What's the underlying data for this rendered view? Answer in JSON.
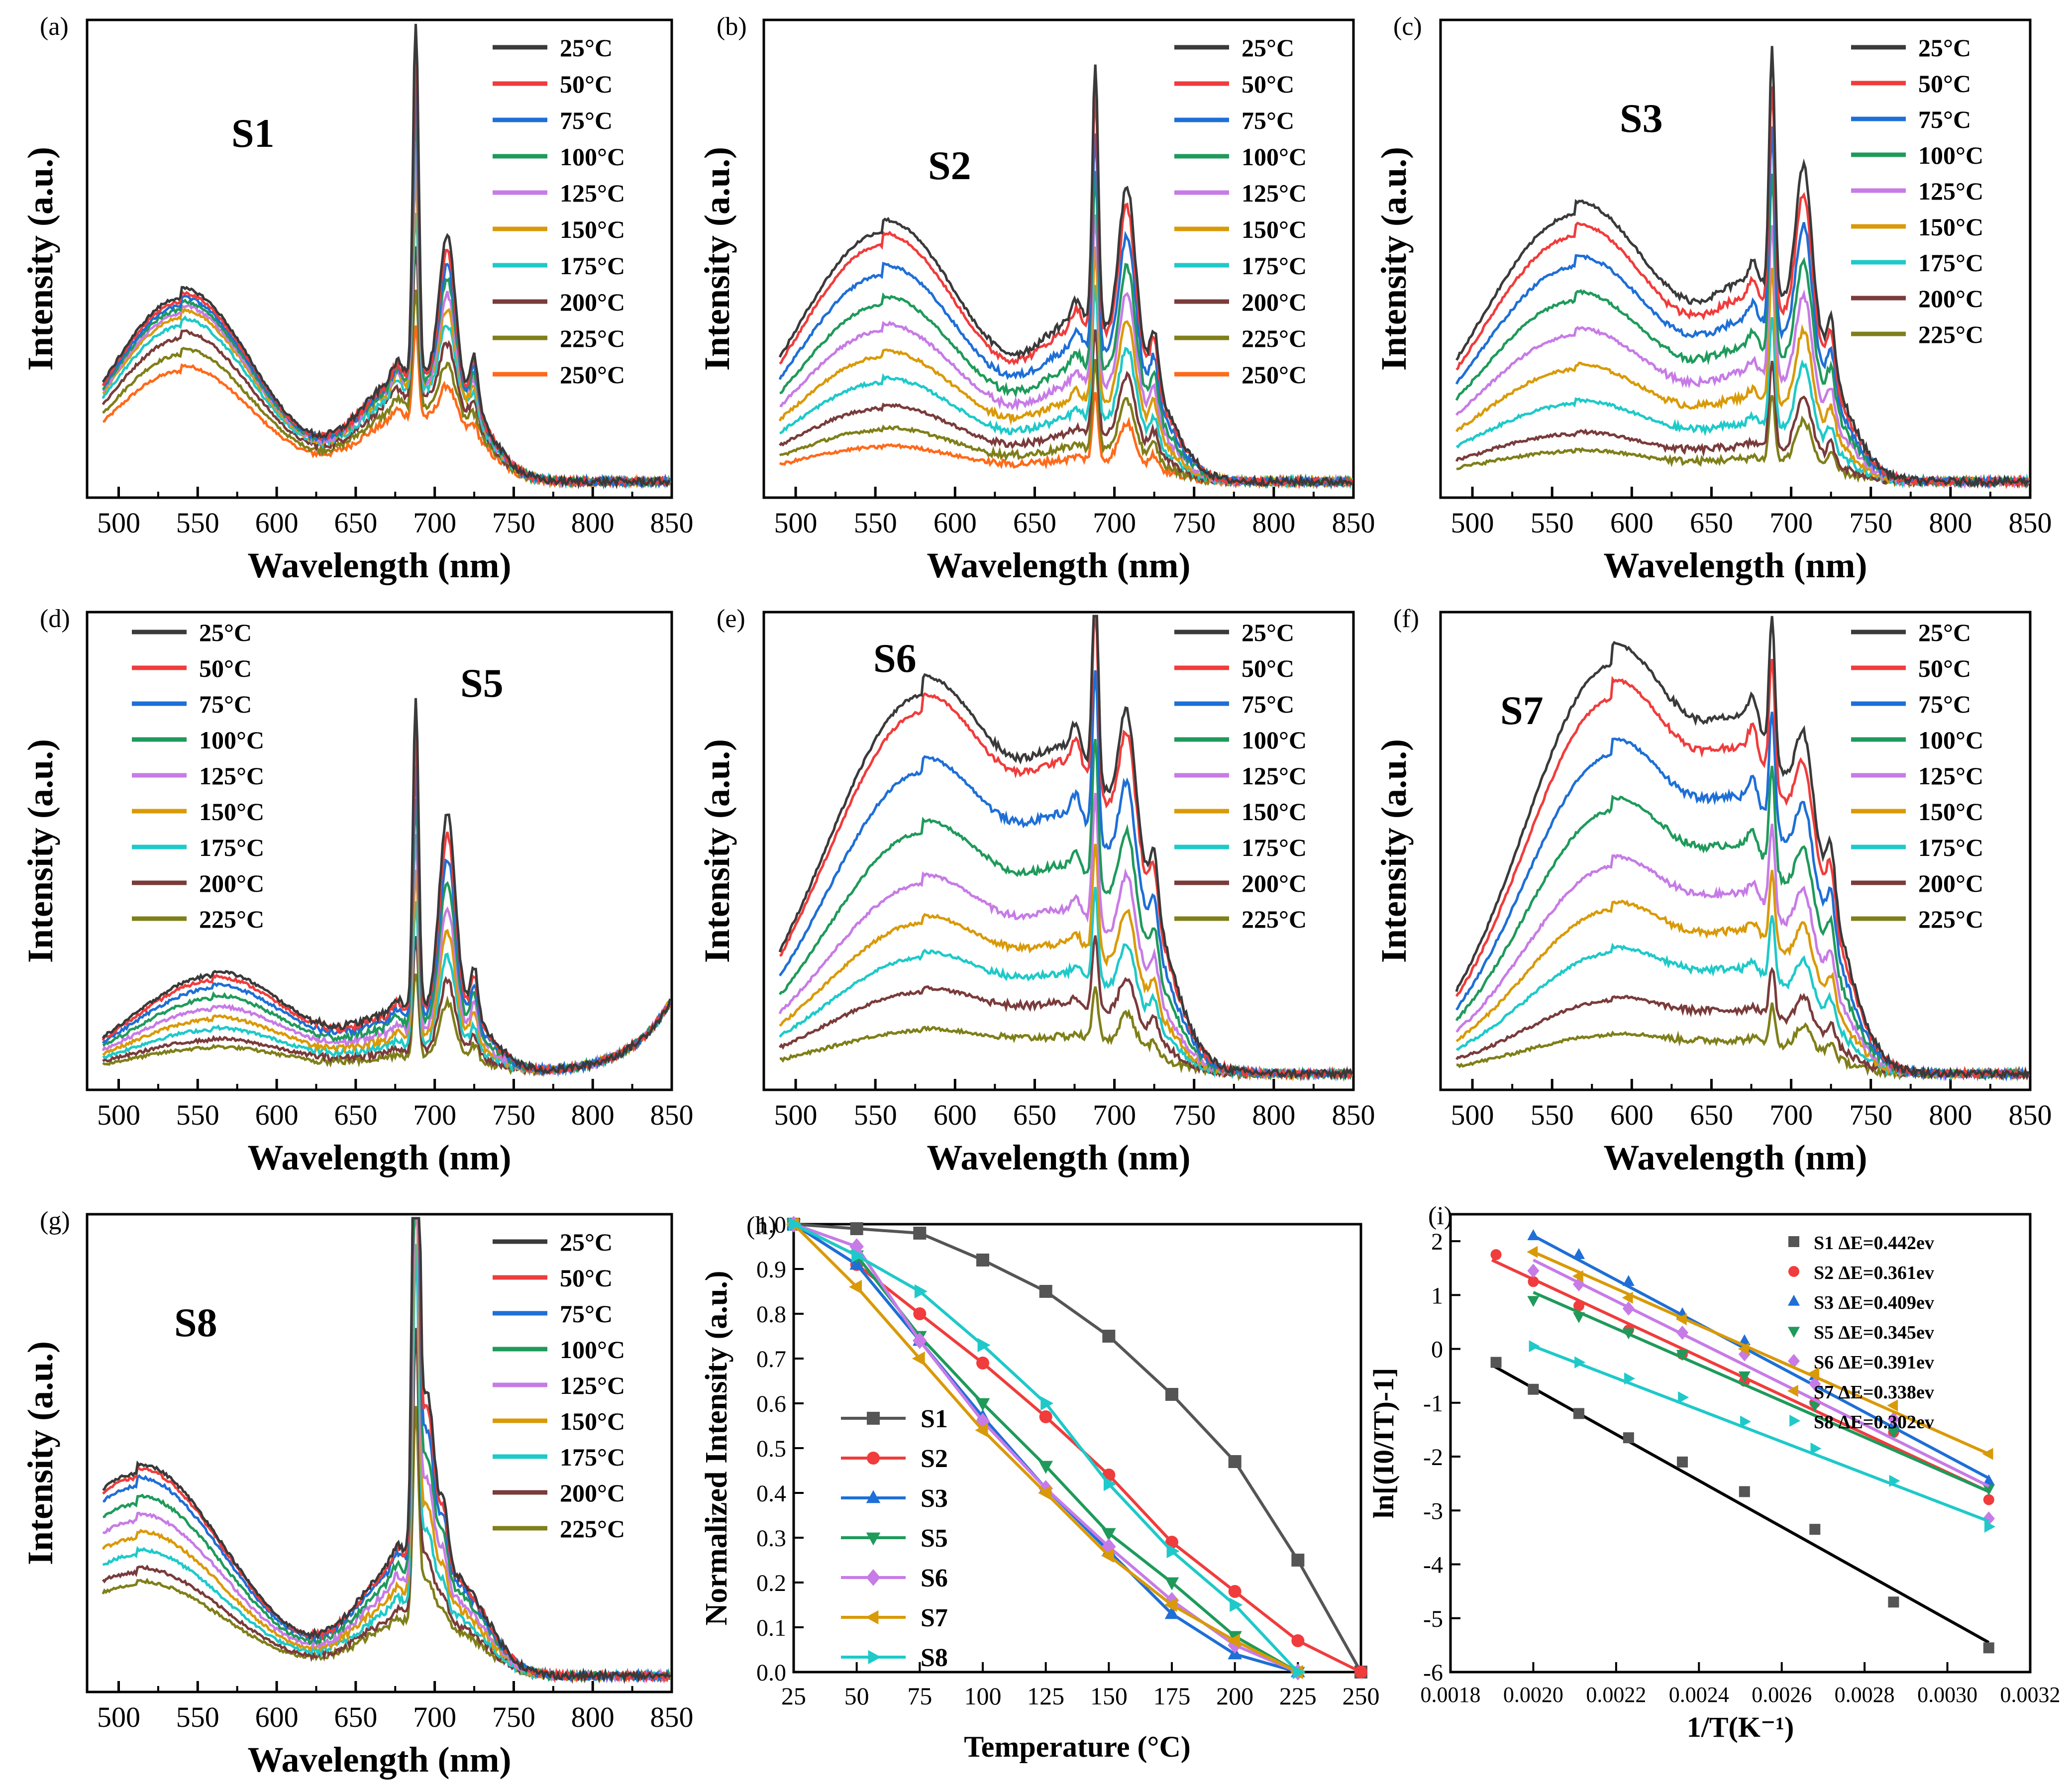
{
  "temperature_legend": [
    "25°C",
    "50°C",
    "75°C",
    "100°C",
    "125°C",
    "150°C",
    "175°C",
    "200°C",
    "225°C",
    "250°C"
  ],
  "series_colors": [
    "#3a3a3a",
    "#f03c3c",
    "#1e6fd6",
    "#1f9a5b",
    "#c77be6",
    "#d99a08",
    "#1fc9c9",
    "#7a3b3b",
    "#7f7f1a",
    "#ff6a1a"
  ],
  "chart_data": [
    {
      "panel": "(a)",
      "sample": "S1",
      "type": "line",
      "xlabel": "Wavelength (nm)",
      "ylabel": "Intensity (a.u.)",
      "xlim": [
        480,
        850
      ],
      "xticks": [
        500,
        550,
        600,
        650,
        700,
        750,
        800,
        850
      ],
      "legend": [
        "25°C",
        "50°C",
        "75°C",
        "100°C",
        "125°C",
        "150°C",
        "175°C",
        "200°C",
        "225°C",
        "250°C"
      ],
      "profile": {
        "hump_center": 540,
        "hump_width": 45,
        "valley": 640,
        "peaks": [
          688,
          708,
          725
        ],
        "hump_factor": 0.95,
        "peak688": 2.2,
        "peak708": 1.2,
        "base": [
          0.45,
          0.44,
          0.43,
          0.42,
          0.41,
          0.4,
          0.38,
          0.35,
          0.31,
          0.27
        ],
        "rise": 0
      }
    },
    {
      "panel": "(b)",
      "sample": "S2",
      "type": "line",
      "xlabel": "Wavelength (nm)",
      "ylabel": "Intensity (a.u.)",
      "xlim": [
        480,
        850
      ],
      "xticks": [
        500,
        550,
        600,
        650,
        700,
        750,
        800,
        850
      ],
      "legend": [
        "25°C",
        "50°C",
        "75°C",
        "100°C",
        "125°C",
        "150°C",
        "175°C",
        "200°C",
        "225°C",
        "250°C"
      ],
      "profile": {
        "hump_center": 555,
        "hump_width": 55,
        "valley": 645,
        "peaks": [
          688,
          708,
          725
        ],
        "hump_factor": 1.0,
        "peak688": 1.6,
        "peak708": 1.3,
        "base": [
          0.58,
          0.55,
          0.48,
          0.41,
          0.35,
          0.29,
          0.23,
          0.17,
          0.12,
          0.08
        ],
        "rise": 0
      }
    },
    {
      "panel": "(c)",
      "sample": "S3",
      "type": "line",
      "xlabel": "Wavelength (nm)",
      "ylabel": "Intensity (a.u.)",
      "xlim": [
        480,
        850
      ],
      "xticks": [
        500,
        550,
        600,
        650,
        700,
        750,
        800,
        850
      ],
      "legend": [
        "25°C",
        "50°C",
        "75°C",
        "100°C",
        "125°C",
        "150°C",
        "175°C",
        "200°C",
        "225°C"
      ],
      "profile": {
        "hump_center": 565,
        "hump_width": 60,
        "valley": 640,
        "peaks": [
          688,
          708,
          725
        ],
        "hump_factor": 1.0,
        "peak688": 1.5,
        "peak708": 1.3,
        "base": [
          0.62,
          0.57,
          0.5,
          0.42,
          0.34,
          0.26,
          0.18,
          0.11,
          0.07
        ],
        "rise": 0
      }
    },
    {
      "panel": "(d)",
      "sample": "S5",
      "type": "line",
      "xlabel": "Wavelength (nm)",
      "ylabel": "Intensity (a.u.)",
      "xlim": [
        480,
        850
      ],
      "xticks": [
        500,
        550,
        600,
        650,
        700,
        750,
        800,
        850
      ],
      "legend": [
        "25°C",
        "50°C",
        "75°C",
        "100°C",
        "125°C",
        "150°C",
        "175°C",
        "200°C",
        "225°C"
      ],
      "profile": {
        "hump_center": 560,
        "hump_width": 50,
        "valley": 630,
        "peaks": [
          688,
          708,
          725
        ],
        "hump_factor": 0.6,
        "peak688": 1.9,
        "peak708": 1.6,
        "base": [
          0.38,
          0.36,
          0.33,
          0.29,
          0.25,
          0.21,
          0.17,
          0.13,
          0.1
        ],
        "rise": 0.5
      }
    },
    {
      "panel": "(e)",
      "sample": "S6",
      "type": "line",
      "xlabel": "Wavelength (nm)",
      "ylabel": "Intensity (a.u.)",
      "xlim": [
        480,
        850
      ],
      "xticks": [
        500,
        550,
        600,
        650,
        700,
        750,
        800,
        850
      ],
      "legend": [
        "25°C",
        "50°C",
        "75°C",
        "100°C",
        "125°C",
        "150°C",
        "175°C",
        "200°C",
        "225°C"
      ],
      "profile": {
        "hump_center": 580,
        "hump_width": 60,
        "valley": 660,
        "peaks": [
          688,
          708,
          725
        ],
        "hump_factor": 1.0,
        "peak688": 1.25,
        "peak708": 1.0,
        "base": [
          0.88,
          0.84,
          0.7,
          0.56,
          0.44,
          0.35,
          0.27,
          0.19,
          0.1
        ],
        "rise": 0
      }
    },
    {
      "panel": "(f)",
      "sample": "S7",
      "type": "line",
      "xlabel": "Wavelength (nm)",
      "ylabel": "Intensity (a.u.)",
      "xlim": [
        480,
        850
      ],
      "xticks": [
        500,
        550,
        600,
        650,
        700,
        750,
        800,
        850
      ],
      "legend": [
        "25°C",
        "50°C",
        "75°C",
        "100°C",
        "125°C",
        "150°C",
        "175°C",
        "200°C",
        "225°C"
      ],
      "profile": {
        "hump_center": 588,
        "hump_width": 55,
        "valley": 670,
        "peaks": [
          688,
          708,
          725
        ],
        "hump_factor": 1.0,
        "peak688": 0.85,
        "peak708": 0.7,
        "base": [
          0.95,
          0.87,
          0.74,
          0.61,
          0.48,
          0.38,
          0.28,
          0.17,
          0.09
        ],
        "rise": 0
      }
    },
    {
      "panel": "(g)",
      "sample": "S8",
      "type": "line",
      "xlabel": "Wavelength (nm)",
      "ylabel": "Intensity (a.u.)",
      "xlim": [
        480,
        850
      ],
      "xticks": [
        500,
        550,
        600,
        650,
        700,
        750,
        800,
        850
      ],
      "legend": [
        "25°C",
        "50°C",
        "75°C",
        "100°C",
        "125°C",
        "150°C",
        "175°C",
        "200°C",
        "225°C"
      ],
      "profile": {
        "hump_center": 512,
        "hump_width": 55,
        "valley": 630,
        "peaks": [
          688,
          695,
          706
        ],
        "hump_factor": 1.0,
        "peak688": 4.5,
        "peak708": 1.4,
        "base": [
          0.47,
          0.46,
          0.44,
          0.4,
          0.36,
          0.32,
          0.28,
          0.24,
          0.21
        ],
        "rise": 0
      }
    },
    {
      "panel": "(h)",
      "type": "line",
      "xlabel": "Temperature (°C)",
      "ylabel": "Normalized Intensity (a.u.)",
      "xlim": [
        25,
        250
      ],
      "ylim": [
        0,
        1.0
      ],
      "xticks": [
        25,
        50,
        75,
        100,
        125,
        150,
        175,
        200,
        225,
        250
      ],
      "yticks": [
        0.0,
        0.1,
        0.2,
        0.3,
        0.4,
        0.5,
        0.6,
        0.7,
        0.8,
        0.9,
        1.0
      ],
      "series": [
        {
          "name": "S1",
          "marker": "square",
          "x": [
            25,
            50,
            75,
            100,
            125,
            150,
            175,
            200,
            225,
            250
          ],
          "values": [
            1.0,
            0.99,
            0.98,
            0.92,
            0.85,
            0.75,
            0.62,
            0.47,
            0.25,
            0.0
          ]
        },
        {
          "name": "S2",
          "marker": "circle",
          "x": [
            25,
            50,
            75,
            100,
            125,
            150,
            175,
            200,
            225,
            250
          ],
          "values": [
            1.0,
            0.91,
            0.8,
            0.69,
            0.57,
            0.44,
            0.29,
            0.18,
            0.07,
            0.0
          ]
        },
        {
          "name": "S3",
          "marker": "triangle-up",
          "x": [
            25,
            50,
            75,
            100,
            125,
            150,
            175,
            200,
            225
          ],
          "values": [
            1.0,
            0.91,
            0.74,
            0.57,
            0.41,
            0.27,
            0.13,
            0.04,
            0.0
          ]
        },
        {
          "name": "S5",
          "marker": "triangle-down",
          "x": [
            25,
            50,
            75,
            100,
            125,
            150,
            175,
            200,
            225
          ],
          "values": [
            1.0,
            0.93,
            0.75,
            0.6,
            0.46,
            0.31,
            0.2,
            0.08,
            0.0
          ]
        },
        {
          "name": "S6",
          "marker": "diamond",
          "x": [
            25,
            50,
            75,
            100,
            125,
            150,
            175,
            200,
            225
          ],
          "values": [
            1.0,
            0.95,
            0.74,
            0.56,
            0.41,
            0.28,
            0.16,
            0.06,
            0.0
          ]
        },
        {
          "name": "S7",
          "marker": "triangle-left",
          "x": [
            25,
            50,
            75,
            100,
            125,
            150,
            175,
            200,
            225
          ],
          "values": [
            1.0,
            0.86,
            0.7,
            0.54,
            0.4,
            0.26,
            0.15,
            0.07,
            0.0
          ]
        },
        {
          "name": "S8",
          "marker": "triangle-right",
          "x": [
            25,
            50,
            75,
            100,
            125,
            150,
            175,
            200,
            225
          ],
          "values": [
            1.0,
            0.93,
            0.85,
            0.73,
            0.6,
            0.42,
            0.27,
            0.15,
            0.0
          ]
        }
      ]
    },
    {
      "panel": "(i)",
      "type": "scatter",
      "xlabel": "1/T(K⁻¹)",
      "ylabel": "ln[(I0/IT)-1]",
      "xlim": [
        0.0018,
        0.0032
      ],
      "ylim": [
        -6,
        2.5
      ],
      "xticks": [
        0.0018,
        0.002,
        0.0022,
        0.0024,
        0.0026,
        0.0028,
        0.003,
        0.0032
      ],
      "xtick_labels": [
        "0.0018",
        "0.0020",
        "0.0022",
        "0.0024",
        "0.0026",
        "0.0028",
        "0.0030",
        "0.0032"
      ],
      "yticks": [
        -6,
        -5,
        -4,
        -3,
        -2,
        -1,
        0,
        1,
        2
      ],
      "series": [
        {
          "name": "S1",
          "dE": "ΔE=0.442ev",
          "marker": "square",
          "x": [
            0.00191,
            0.002,
            0.00211,
            0.00223,
            0.00236,
            0.00251,
            0.00268,
            0.00287,
            0.0031
          ],
          "values": [
            -0.25,
            -0.75,
            -1.2,
            -1.65,
            -2.1,
            -2.65,
            -3.35,
            -4.7,
            -5.55
          ],
          "fit": [
            [
              0.0019,
              -0.3
            ],
            [
              0.0031,
              -5.45
            ]
          ]
        },
        {
          "name": "S2",
          "dE": "ΔE=0.361ev",
          "marker": "circle",
          "x": [
            0.00191,
            0.002,
            0.00211,
            0.00223,
            0.00236,
            0.00251,
            0.00268,
            0.00287,
            0.0031
          ],
          "values": [
            1.75,
            1.25,
            0.8,
            0.35,
            -0.1,
            -0.6,
            -1.0,
            -1.55,
            -2.8
          ],
          "fit": [
            [
              0.0019,
              1.65
            ],
            [
              0.0031,
              -2.65
            ]
          ]
        },
        {
          "name": "S3",
          "dE": "ΔE=0.409ev",
          "marker": "triangle-up",
          "x": [
            0.002,
            0.00211,
            0.00223,
            0.00236,
            0.00251,
            0.00268,
            0.00287,
            0.0031
          ],
          "values": [
            2.1,
            1.75,
            1.25,
            0.65,
            0.15,
            -0.5,
            -1.4,
            -2.45
          ],
          "fit": [
            [
              0.002,
              2.1
            ],
            [
              0.0031,
              -2.4
            ]
          ]
        },
        {
          "name": "S5",
          "dE": "ΔE=0.345ev",
          "marker": "triangle-down",
          "x": [
            0.002,
            0.00211,
            0.00223,
            0.00236,
            0.00251,
            0.00268,
            0.00287,
            0.0031
          ],
          "values": [
            0.9,
            0.6,
            0.3,
            -0.1,
            -0.5,
            -1.05,
            -1.55,
            -2.6
          ],
          "fit": [
            [
              0.002,
              1.05
            ],
            [
              0.0031,
              -2.65
            ]
          ]
        },
        {
          "name": "S6",
          "dE": "ΔE=0.391ev",
          "marker": "diamond",
          "x": [
            0.002,
            0.00211,
            0.00223,
            0.00236,
            0.00251,
            0.00268,
            0.00287,
            0.0031
          ],
          "values": [
            1.45,
            1.2,
            0.75,
            0.3,
            -0.1,
            -0.65,
            -1.3,
            -3.15
          ],
          "fit": [
            [
              0.002,
              1.65
            ],
            [
              0.0031,
              -2.55
            ]
          ]
        },
        {
          "name": "S7",
          "dE": "ΔE=0.338ev",
          "marker": "triangle-left",
          "x": [
            0.002,
            0.00211,
            0.00223,
            0.00236,
            0.00251,
            0.00268,
            0.00287,
            0.0031
          ],
          "values": [
            1.8,
            1.35,
            0.95,
            0.55,
            0.0,
            -0.45,
            -1.05,
            -1.95
          ],
          "fit": [
            [
              0.002,
              1.8
            ],
            [
              0.0031,
              -1.95
            ]
          ]
        },
        {
          "name": "S8",
          "dE": "ΔE=0.302ev",
          "marker": "triangle-right",
          "x": [
            0.002,
            0.00211,
            0.00223,
            0.00236,
            0.00251,
            0.00268,
            0.00287,
            0.0031
          ],
          "values": [
            0.05,
            -0.25,
            -0.55,
            -0.9,
            -1.35,
            -1.85,
            -2.45,
            -3.3
          ],
          "fit": [
            [
              0.002,
              0.05
            ],
            [
              0.0031,
              -3.2
            ]
          ]
        }
      ]
    }
  ],
  "panel_h_colors": [
    "#555555",
    "#f03c3c",
    "#1e6fd6",
    "#1f9a5b",
    "#c77be6",
    "#d99a08",
    "#1fc9c9"
  ],
  "panel_i_colors": [
    "#555555",
    "#f03c3c",
    "#1e6fd6",
    "#1f9a5b",
    "#c77be6",
    "#d99a08",
    "#1fc9c9"
  ]
}
